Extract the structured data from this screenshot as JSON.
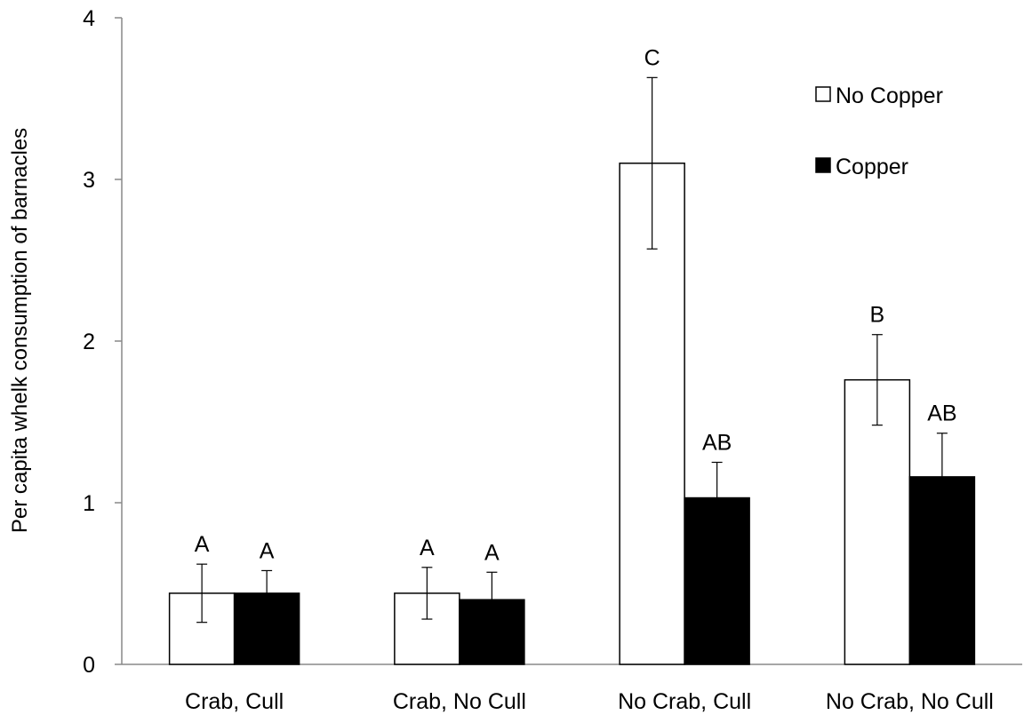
{
  "chart_data": {
    "type": "bar",
    "title": "",
    "xlabel": "",
    "ylabel": "Per capita whelk consumption of  barnacles",
    "ylim": [
      0,
      4
    ],
    "yticks": [
      "0",
      "1",
      "2",
      "3",
      "4"
    ],
    "categories": [
      "Crab, Cull",
      "Crab, No Cull",
      "No Crab, Cull",
      "No Crab, No Cull"
    ],
    "series": [
      {
        "name": "No Copper",
        "color": "#ffffff",
        "values": [
          0.44,
          0.44,
          3.1,
          1.76
        ],
        "errors": [
          0.18,
          0.16,
          0.53,
          0.28
        ],
        "letters": [
          "A",
          "A",
          "C",
          "B"
        ]
      },
      {
        "name": "Copper",
        "color": "#000000",
        "values": [
          0.44,
          0.4,
          1.03,
          1.16
        ],
        "errors": [
          0.14,
          0.17,
          0.22,
          0.27
        ],
        "letters": [
          "A",
          "A",
          "AB",
          "AB"
        ]
      }
    ],
    "legend": "top-right",
    "grid": false
  }
}
